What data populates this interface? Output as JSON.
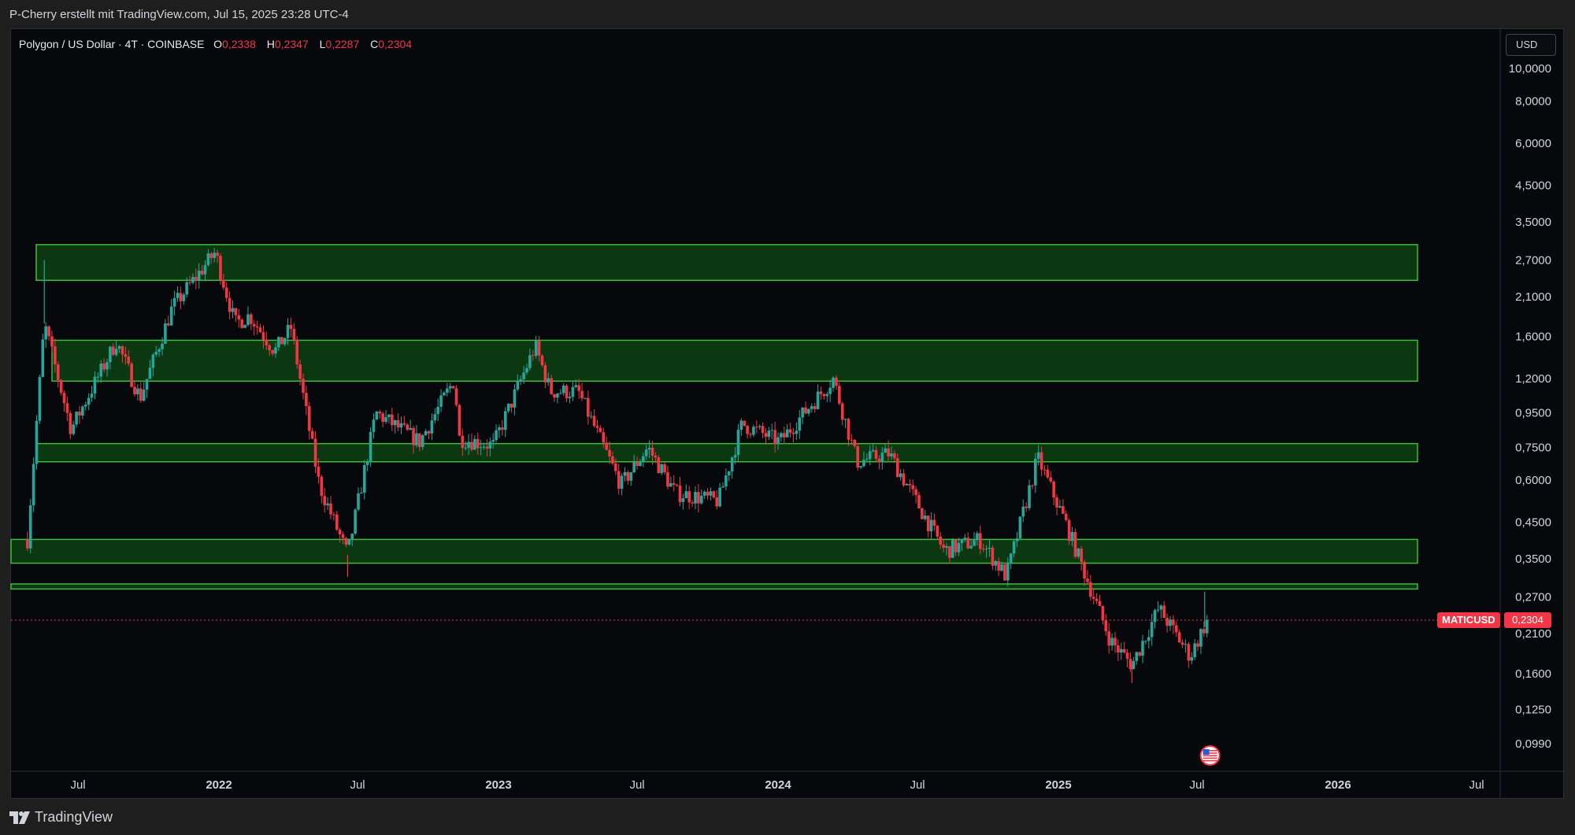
{
  "header": {
    "caption": "P-Cherry erstellt mit TradingView.com, Jul 15, 2025 23:28 UTC-4"
  },
  "legend": {
    "title": "Polygon / US Dollar · 4T · COINBASE",
    "o_label": "O",
    "o_value": "0,2338",
    "h_label": "H",
    "h_value": "0,2347",
    "l_label": "L",
    "l_value": "0,2287",
    "c_label": "C",
    "c_value": "0,2304"
  },
  "toolbar": {
    "currency": "USD"
  },
  "price_marker": {
    "symbol": "MATICUSD",
    "price": "0,2304"
  },
  "footer": {
    "brand": "TradingView"
  },
  "colors": {
    "up": "#26a69a",
    "down": "#f23645",
    "zone_fill": "#0b3810",
    "zone_border": "#3fb93f",
    "background": "#07080b",
    "text": "#d1d4dc"
  },
  "chart_data": {
    "type": "candlestick",
    "symbol": "MATICUSD",
    "exchange": "COINBASE",
    "interval": "4T",
    "y_scale": "log",
    "y_ticks": [
      "10,0000",
      "8,0000",
      "6,0000",
      "4,5000",
      "3,5000",
      "2,7000",
      "2,1000",
      "1,6000",
      "1,2000",
      "0,9500",
      "0,7500",
      "0,6000",
      "0,4500",
      "0,3500",
      "0,2700",
      "0,2100",
      "0,1600",
      "0,1250",
      "0,0990"
    ],
    "y_tick_values": [
      10,
      8,
      6,
      4.5,
      3.5,
      2.7,
      2.1,
      1.6,
      1.2,
      0.95,
      0.75,
      0.6,
      0.45,
      0.35,
      0.27,
      0.21,
      0.16,
      0.125,
      0.099
    ],
    "x_ticks": [
      {
        "label": "Jul",
        "date": "2021-07-01",
        "bold": false
      },
      {
        "label": "2022",
        "date": "2022-01-01",
        "bold": true
      },
      {
        "label": "Jul",
        "date": "2022-07-01",
        "bold": false
      },
      {
        "label": "2023",
        "date": "2023-01-01",
        "bold": true
      },
      {
        "label": "Jul",
        "date": "2023-07-01",
        "bold": false
      },
      {
        "label": "2024",
        "date": "2024-01-01",
        "bold": true
      },
      {
        "label": "Jul",
        "date": "2024-07-01",
        "bold": false
      },
      {
        "label": "2025",
        "date": "2025-01-01",
        "bold": true
      },
      {
        "label": "Jul",
        "date": "2025-07-01",
        "bold": false
      },
      {
        "label": "2026",
        "date": "2026-01-01",
        "bold": true
      },
      {
        "label": "Jul",
        "date": "2026-07-01",
        "bold": false
      }
    ],
    "zones": [
      {
        "low": 2.35,
        "high": 3.0
      },
      {
        "low": 1.18,
        "high": 1.56
      },
      {
        "low": 0.68,
        "high": 0.77
      },
      {
        "low": 0.34,
        "high": 0.4
      },
      {
        "low": 0.285,
        "high": 0.295
      }
    ],
    "last_price": 0.2304,
    "keypoints": [
      {
        "date": "2021-04-26",
        "price": 0.4
      },
      {
        "date": "2021-05-18",
        "price": 1.75
      },
      {
        "date": "2021-06-22",
        "price": 0.85
      },
      {
        "date": "2021-08-20",
        "price": 1.55
      },
      {
        "date": "2021-09-20",
        "price": 1.05
      },
      {
        "date": "2021-11-01",
        "price": 1.95
      },
      {
        "date": "2021-12-27",
        "price": 2.85
      },
      {
        "date": "2022-01-22",
        "price": 1.75
      },
      {
        "date": "2022-02-10",
        "price": 1.85
      },
      {
        "date": "2022-03-15",
        "price": 1.45
      },
      {
        "date": "2022-04-05",
        "price": 1.7
      },
      {
        "date": "2022-05-12",
        "price": 0.58
      },
      {
        "date": "2022-06-18",
        "price": 0.36
      },
      {
        "date": "2022-07-25",
        "price": 0.95
      },
      {
        "date": "2022-09-20",
        "price": 0.78
      },
      {
        "date": "2022-11-05",
        "price": 1.2
      },
      {
        "date": "2022-11-10",
        "price": 0.8
      },
      {
        "date": "2022-12-25",
        "price": 0.76
      },
      {
        "date": "2023-02-18",
        "price": 1.5
      },
      {
        "date": "2023-03-10",
        "price": 1.1
      },
      {
        "date": "2023-04-15",
        "price": 1.1
      },
      {
        "date": "2023-06-10",
        "price": 0.58
      },
      {
        "date": "2023-07-15",
        "price": 0.75
      },
      {
        "date": "2023-08-20",
        "price": 0.55
      },
      {
        "date": "2023-10-15",
        "price": 0.52
      },
      {
        "date": "2023-11-15",
        "price": 0.88
      },
      {
        "date": "2024-01-03",
        "price": 0.78
      },
      {
        "date": "2024-03-13",
        "price": 1.2
      },
      {
        "date": "2024-04-13",
        "price": 0.68
      },
      {
        "date": "2024-05-25",
        "price": 0.72
      },
      {
        "date": "2024-08-05",
        "price": 0.37
      },
      {
        "date": "2024-09-20",
        "price": 0.4
      },
      {
        "date": "2024-10-25",
        "price": 0.31
      },
      {
        "date": "2024-12-05",
        "price": 0.7
      },
      {
        "date": "2025-01-10",
        "price": 0.45
      },
      {
        "date": "2025-03-10",
        "price": 0.2
      },
      {
        "date": "2025-04-07",
        "price": 0.17
      },
      {
        "date": "2025-05-12",
        "price": 0.25
      },
      {
        "date": "2025-06-22",
        "price": 0.18
      },
      {
        "date": "2025-07-10",
        "price": 0.22
      },
      {
        "date": "2025-07-15",
        "price": 0.2304
      }
    ],
    "spikes": [
      {
        "date": "2021-05-18",
        "high": 2.7
      },
      {
        "date": "2022-06-18",
        "low": 0.31
      },
      {
        "date": "2025-07-11",
        "high": 0.28
      },
      {
        "date": "2025-04-07",
        "low": 0.15
      }
    ]
  }
}
